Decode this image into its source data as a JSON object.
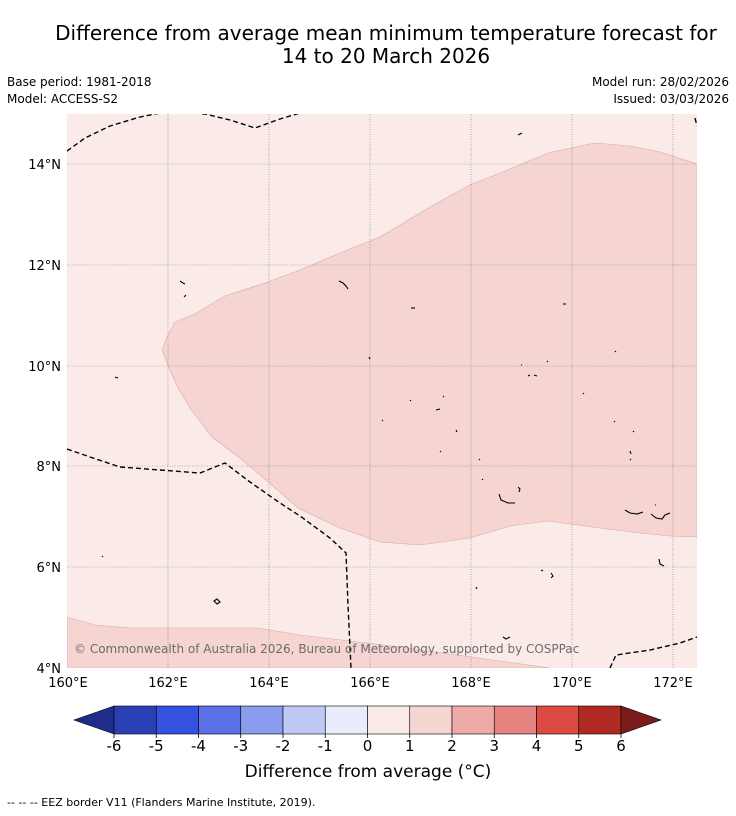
{
  "title_line1": "Difference from average mean minimum temperature forecast for",
  "title_line2": "14 to 20 March 2026",
  "base_period": "Base period: 1981-2018",
  "model": "Model: ACCESS-S2",
  "model_run": "Model run: 28/02/2026",
  "issued": "Issued: 03/03/2026",
  "map": {
    "lon_labels": [
      "160°E",
      "162°E",
      "164°E",
      "166°E",
      "168°E",
      "170°E",
      "172°E"
    ],
    "lat_labels": [
      "14°N",
      "12°N",
      "10°N",
      "8°N",
      "6°N",
      "4°N"
    ],
    "copyright": "© Commonwealth of Australia 2026, Bureau of Meteorology, supported by COSPPac"
  },
  "colorbar": {
    "labels": [
      "-6",
      "-5",
      "-4",
      "-3",
      "-2",
      "-1",
      "0",
      "1",
      "2",
      "3",
      "4",
      "5",
      "6"
    ],
    "colors": [
      "#1f2d8a",
      "#2b3fb5",
      "#3452e0",
      "#5a72e6",
      "#8a9cee",
      "#c0c8f4",
      "#e8ecfb",
      "#fbebe8",
      "#f5d4d2",
      "#eeaaa8",
      "#e58280",
      "#dc4a42",
      "#b02a23",
      "#7a1c1b"
    ],
    "title": "Difference from average (°C)"
  },
  "footer": "--  --  -- EEZ border V11 (Flanders Marine Institute, 2019)."
}
